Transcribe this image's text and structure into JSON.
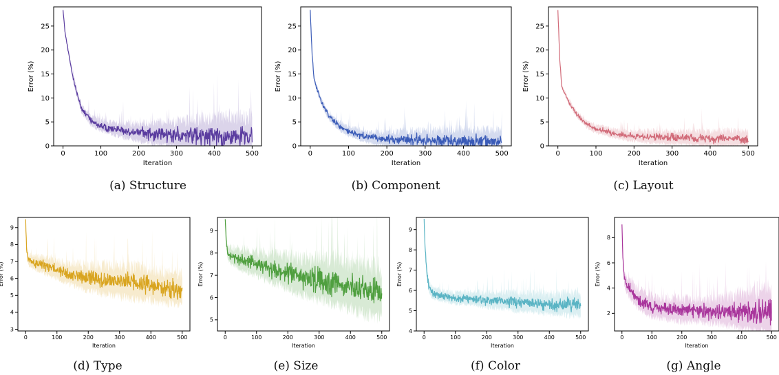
{
  "chart_data": [
    {
      "type": "line",
      "caption": "(a) Structure",
      "color": "#5a3c9f",
      "xlabel": "Iteration",
      "ylabel": "Error (%)",
      "xlim": [
        0,
        500
      ],
      "ylim": [
        0,
        29
      ],
      "xticks": [
        0,
        100,
        200,
        300,
        400,
        500
      ],
      "yticks": [
        0,
        5,
        10,
        15,
        20,
        25
      ],
      "grid": false,
      "series": [
        {
          "x": [
            0,
            5,
            10,
            20,
            30,
            40,
            50,
            75,
            100,
            150,
            200,
            250,
            300,
            350,
            400,
            450,
            500
          ],
          "values": [
            28.3,
            24,
            21.5,
            17,
            13,
            10,
            7.5,
            5.2,
            4.2,
            3.2,
            2.8,
            2.4,
            2.2,
            2.0,
            2.0,
            2.1,
            2.0
          ],
          "spread": [
            0.3,
            0.4,
            0.5,
            0.6,
            0.7,
            0.8,
            1.0,
            1.2,
            1.3,
            1.5,
            2.0,
            2.5,
            3.0,
            3.5,
            4.0,
            4.0,
            4.2
          ]
        }
      ]
    },
    {
      "type": "line",
      "caption": "(b) Component",
      "color": "#3a5bb7",
      "xlabel": "Iteration",
      "ylabel": "Error (%)",
      "xlim": [
        0,
        500
      ],
      "ylim": [
        0,
        29
      ],
      "xticks": [
        0,
        100,
        200,
        300,
        400,
        500
      ],
      "yticks": [
        0,
        5,
        10,
        15,
        20,
        25
      ],
      "grid": false,
      "series": [
        {
          "x": [
            0,
            5,
            10,
            15,
            30,
            50,
            75,
            100,
            150,
            200,
            250,
            300,
            350,
            400,
            450,
            500
          ],
          "values": [
            28.3,
            19,
            14,
            12.5,
            9,
            6,
            4.2,
            3.0,
            1.8,
            1.3,
            1.2,
            1.1,
            1.1,
            1.0,
            1.0,
            1.0
          ],
          "spread": [
            0.3,
            0.4,
            0.5,
            0.6,
            0.8,
            0.9,
            1.0,
            1.1,
            1.3,
            1.6,
            2.0,
            2.2,
            2.5,
            2.6,
            2.6,
            2.6
          ]
        }
      ]
    },
    {
      "type": "line",
      "caption": "(c) Layout",
      "color": "#d16a78",
      "xlabel": "Iteration",
      "ylabel": "Error (%)",
      "xlim": [
        0,
        500
      ],
      "ylim": [
        0,
        29
      ],
      "xticks": [
        0,
        100,
        200,
        300,
        400,
        500
      ],
      "yticks": [
        0,
        5,
        10,
        15,
        20,
        25
      ],
      "grid": false,
      "series": [
        {
          "x": [
            0,
            5,
            10,
            15,
            30,
            50,
            75,
            100,
            150,
            200,
            250,
            300,
            350,
            400,
            450,
            500
          ],
          "values": [
            28.3,
            18,
            12.5,
            11.5,
            9,
            6.5,
            4.5,
            3.5,
            2.5,
            2.0,
            1.8,
            1.7,
            1.6,
            1.5,
            1.5,
            1.4
          ],
          "spread": [
            0.3,
            0.4,
            0.5,
            0.5,
            0.6,
            0.7,
            0.8,
            0.9,
            1.0,
            1.2,
            1.4,
            1.5,
            1.6,
            1.7,
            1.7,
            1.7
          ]
        }
      ]
    },
    {
      "type": "line",
      "caption": "(d) Type",
      "color": "#d9a520",
      "xlabel": "Iteration",
      "ylabel": "Error (%)",
      "xlim": [
        0,
        500
      ],
      "ylim": [
        2.9,
        9.6
      ],
      "xticks": [
        0,
        100,
        200,
        300,
        400,
        500
      ],
      "yticks": [
        3,
        4,
        5,
        6,
        7,
        8,
        9
      ],
      "grid": false,
      "series": [
        {
          "x": [
            0,
            3,
            8,
            15,
            50,
            100,
            150,
            200,
            250,
            300,
            350,
            400,
            450,
            500
          ],
          "values": [
            9.5,
            7.8,
            7.1,
            7.0,
            6.8,
            6.5,
            6.2,
            6.0,
            5.9,
            5.8,
            5.7,
            5.6,
            5.4,
            5.3
          ],
          "spread": [
            0.2,
            0.3,
            0.3,
            0.4,
            0.5,
            0.6,
            0.7,
            0.8,
            0.9,
            1.0,
            1.0,
            1.0,
            1.0,
            1.0
          ]
        }
      ]
    },
    {
      "type": "line",
      "caption": "(e) Size",
      "color": "#4f9f3f",
      "xlabel": "Iteration",
      "ylabel": "Error (%)",
      "xlim": [
        0,
        500
      ],
      "ylim": [
        4.5,
        9.6
      ],
      "xticks": [
        0,
        100,
        200,
        300,
        400,
        500
      ],
      "yticks": [
        5,
        6,
        7,
        8,
        9
      ],
      "grid": false,
      "series": [
        {
          "x": [
            0,
            3,
            8,
            15,
            50,
            100,
            150,
            200,
            250,
            300,
            350,
            400,
            450,
            500
          ],
          "values": [
            9.5,
            8.6,
            8.0,
            7.9,
            7.7,
            7.5,
            7.3,
            7.1,
            6.9,
            6.8,
            6.7,
            6.5,
            6.3,
            6.2
          ],
          "spread": [
            0.2,
            0.3,
            0.3,
            0.4,
            0.5,
            0.6,
            0.7,
            0.8,
            0.9,
            1.0,
            1.1,
            1.1,
            1.2,
            1.2
          ]
        }
      ]
    },
    {
      "type": "line",
      "caption": "(f) Color",
      "color": "#5ab4c4",
      "xlabel": "Iteration",
      "ylabel": "Error (%)",
      "xlim": [
        0,
        500
      ],
      "ylim": [
        4,
        9.6
      ],
      "xticks": [
        0,
        100,
        200,
        300,
        400,
        500
      ],
      "yticks": [
        4,
        5,
        6,
        7,
        8,
        9
      ],
      "grid": false,
      "series": [
        {
          "x": [
            0,
            3,
            8,
            15,
            25,
            40,
            60,
            100,
            150,
            200,
            250,
            300,
            350,
            400,
            450,
            500
          ],
          "values": [
            9.5,
            8.2,
            7.0,
            6.2,
            5.9,
            5.8,
            5.7,
            5.6,
            5.6,
            5.5,
            5.5,
            5.4,
            5.4,
            5.3,
            5.3,
            5.3
          ],
          "spread": [
            0.2,
            0.3,
            0.3,
            0.3,
            0.3,
            0.3,
            0.3,
            0.3,
            0.35,
            0.4,
            0.45,
            0.5,
            0.5,
            0.55,
            0.6,
            0.6
          ]
        }
      ]
    },
    {
      "type": "line",
      "caption": "(g) Angle",
      "color": "#a9369c",
      "xlabel": "Iteration",
      "ylabel": "Error (%)",
      "xlim": [
        0,
        500
      ],
      "ylim": [
        0.6,
        9.6
      ],
      "xticks": [
        0,
        100,
        200,
        300,
        400,
        500
      ],
      "yticks": [
        2,
        4,
        6,
        8
      ],
      "grid": false,
      "series": [
        {
          "x": [
            0,
            3,
            8,
            15,
            30,
            50,
            75,
            100,
            150,
            200,
            250,
            300,
            350,
            400,
            450,
            500
          ],
          "values": [
            9.2,
            6.5,
            4.8,
            4.2,
            3.8,
            3.2,
            2.8,
            2.5,
            2.3,
            2.2,
            2.2,
            2.1,
            2.1,
            2.1,
            2.1,
            2.1
          ],
          "spread": [
            0.3,
            0.4,
            0.6,
            0.7,
            0.8,
            0.8,
            0.9,
            0.9,
            0.9,
            1.0,
            1.0,
            1.0,
            1.2,
            1.5,
            1.8,
            2.0
          ]
        }
      ]
    }
  ]
}
